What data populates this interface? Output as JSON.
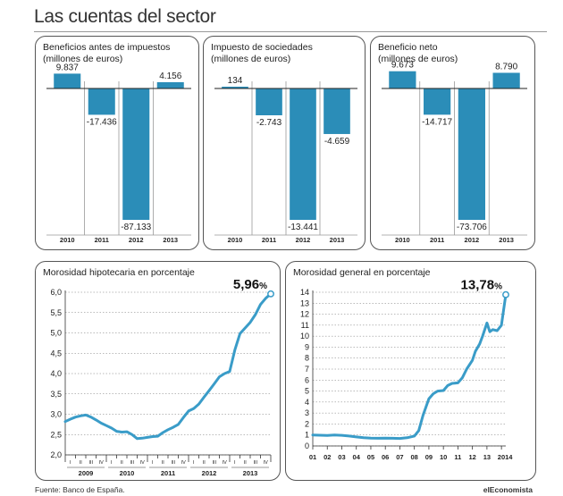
{
  "header": {
    "title": "Las cuentas del sector"
  },
  "footer": {
    "source": "Fuente: Banco de España.",
    "brand": "elEconomista"
  },
  "chart_data": [
    {
      "type": "bar",
      "title": "Beneficios antes de impuestos\n(millones de euros)",
      "categories": [
        "2010",
        "2011",
        "2012",
        "2013"
      ],
      "values": [
        9837,
        -17436,
        -87133,
        4156
      ],
      "value_labels": [
        "9.837",
        "-17.436",
        "-87.133",
        "4.156"
      ],
      "color": "#2b8db8"
    },
    {
      "type": "bar",
      "title": "Impuesto de sociedades\n(millones de euros)",
      "categories": [
        "2010",
        "2011",
        "2012",
        "2013"
      ],
      "values": [
        134,
        -2743,
        -13441,
        -4659
      ],
      "value_labels": [
        "134",
        "-2.743",
        "-13.441",
        "-4.659"
      ],
      "color": "#2b8db8"
    },
    {
      "type": "bar",
      "title": "Beneficio neto\n(millones de euros)",
      "categories": [
        "2010",
        "2011",
        "2012",
        "2013"
      ],
      "values": [
        9673,
        -14717,
        -73706,
        8790
      ],
      "value_labels": [
        "9.673",
        "-14.717",
        "-73.706",
        "8.790"
      ],
      "color": "#2b8db8"
    },
    {
      "type": "line",
      "title": "Morosidad hipotecaria en porcentaje",
      "ylim": [
        2.0,
        6.0
      ],
      "yticks": [
        "2,0",
        "2,5",
        "3,0",
        "3,5",
        "4,0",
        "4,5",
        "5,0",
        "5,5",
        "6,0"
      ],
      "quarter_labels": [
        "I",
        "II",
        "III",
        "IV"
      ],
      "year_labels": [
        "2009",
        "2010",
        "2011",
        "2012",
        "2013"
      ],
      "x": [
        0.0,
        0.5,
        1.0,
        1.5,
        2.0,
        2.5,
        3.0,
        3.5,
        4.0,
        4.5,
        5.0,
        5.5,
        6.0,
        6.5,
        7.0,
        7.5,
        8.0,
        8.5,
        9.0,
        9.5,
        10.0,
        10.5,
        11.0,
        11.5,
        12.0,
        12.5,
        13.0,
        13.5,
        14.0,
        14.5,
        15.0,
        15.5,
        16.0,
        16.5,
        17.0,
        17.5,
        18.0,
        18.5,
        19.0,
        19.5,
        20.0
      ],
      "y": [
        2.82,
        2.88,
        2.93,
        2.96,
        2.98,
        2.93,
        2.86,
        2.78,
        2.72,
        2.66,
        2.58,
        2.56,
        2.57,
        2.5,
        2.4,
        2.41,
        2.43,
        2.45,
        2.46,
        2.55,
        2.62,
        2.68,
        2.75,
        2.92,
        3.08,
        3.14,
        3.25,
        3.42,
        3.58,
        3.75,
        3.92,
        4.0,
        4.05,
        4.58,
        4.98,
        5.12,
        5.26,
        5.45,
        5.7,
        5.85,
        5.96
      ],
      "final_value_label": "5,96",
      "unit": "%",
      "color": "#3a9cc8"
    },
    {
      "type": "line",
      "title": "Morosidad general en porcentaje",
      "ylim": [
        0,
        14
      ],
      "yticks": [
        "0",
        "1",
        "2",
        "3",
        "4",
        "5",
        "6",
        "7",
        "8",
        "9",
        "10",
        "11",
        "12",
        "13",
        "14"
      ],
      "xticks": [
        "01",
        "02",
        "03",
        "04",
        "05",
        "06",
        "07",
        "08",
        "09",
        "10",
        "11",
        "12",
        "13",
        "2014"
      ],
      "x": [
        0.0,
        0.5,
        1.0,
        1.5,
        2.0,
        2.5,
        3.0,
        3.5,
        4.0,
        4.5,
        5.0,
        5.5,
        6.0,
        6.5,
        7.0,
        7.3,
        7.6,
        8.0,
        8.3,
        8.6,
        9.0,
        9.3,
        9.6,
        10.0,
        10.3,
        10.6,
        11.0,
        11.2,
        11.5,
        11.7,
        12.0,
        12.2,
        12.4,
        12.7,
        13.0,
        13.3
      ],
      "y": [
        1.0,
        0.98,
        0.95,
        1.0,
        0.97,
        0.9,
        0.82,
        0.75,
        0.72,
        0.7,
        0.72,
        0.7,
        0.68,
        0.75,
        0.9,
        1.4,
        2.8,
        4.3,
        4.75,
        5.0,
        5.05,
        5.5,
        5.7,
        5.75,
        6.2,
        7.0,
        7.8,
        8.6,
        9.3,
        10.0,
        11.2,
        10.4,
        10.6,
        10.5,
        11.0,
        13.78
      ],
      "final_value_label": "13,78",
      "unit": "%",
      "color": "#3a9cc8"
    }
  ]
}
